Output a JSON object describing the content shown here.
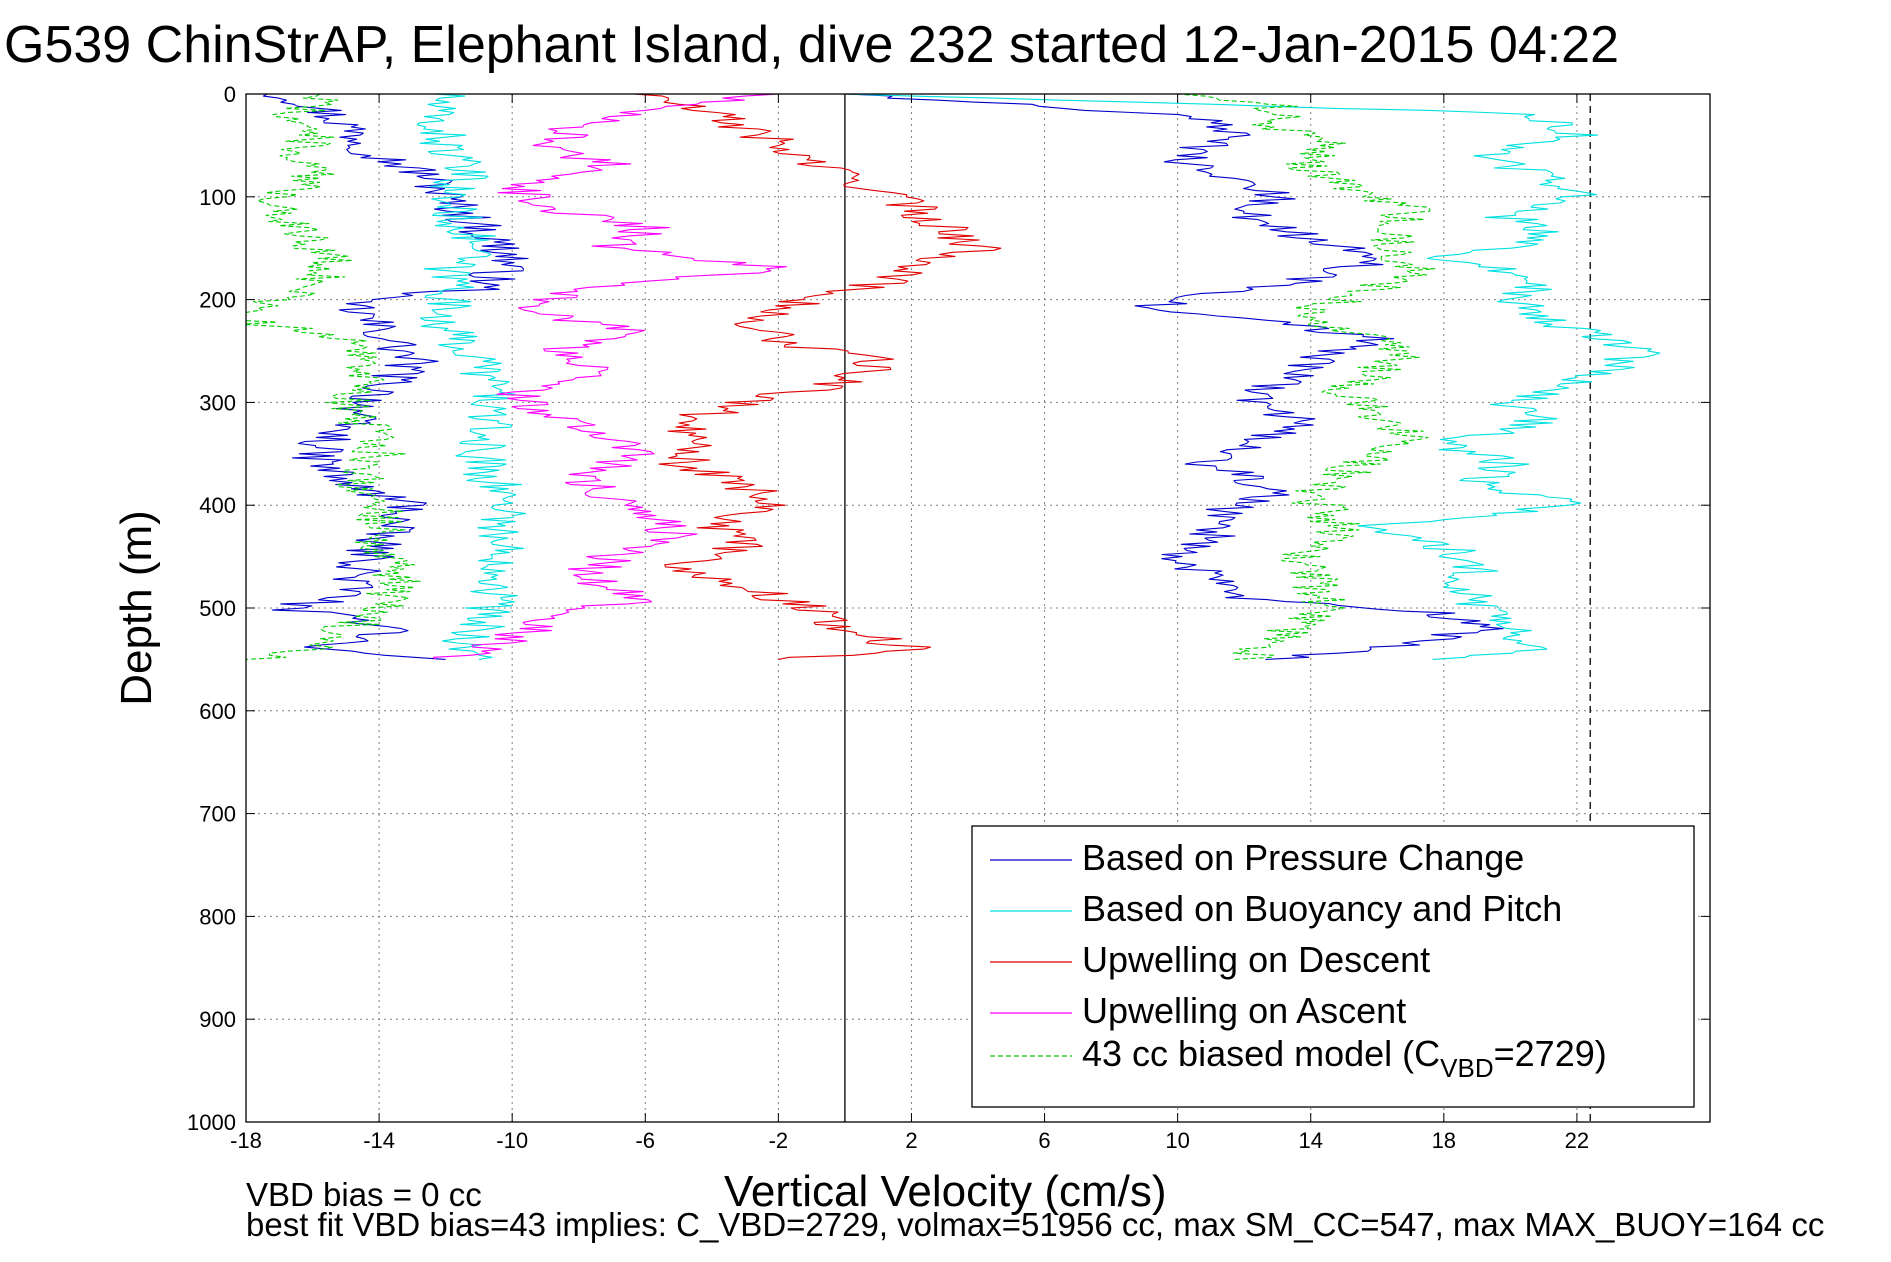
{
  "chart_data": {
    "type": "line",
    "title": "G539 ChinStrAP, Elephant Island, dive 232 started 12-Jan-2015 04:22",
    "xlabel": "Vertical Velocity (cm/s)",
    "ylabel": "Depth (m)",
    "xlim": [
      -18,
      26
    ],
    "ylim": [
      1000,
      0
    ],
    "x_ticks": [
      -18,
      -14,
      -10,
      -6,
      -2,
      2,
      6,
      10,
      14,
      18,
      22
    ],
    "x_tick_labels": [
      "-18",
      "-14",
      "-10",
      "-6",
      "-2",
      "2",
      "6",
      "10",
      "14",
      "18",
      "22"
    ],
    "y_ticks": [
      0,
      100,
      200,
      300,
      400,
      500,
      600,
      700,
      800,
      900,
      1000
    ],
    "y_tick_labels": [
      "0",
      "100",
      "200",
      "300",
      "400",
      "500",
      "600",
      "700",
      "800",
      "900",
      "1000"
    ],
    "grid": true,
    "legend_position": "bottom-right",
    "vertical_lines": [
      {
        "x": 0,
        "style": "solid",
        "color": "#000000"
      },
      {
        "x": 22.4,
        "style": "dashed",
        "color": "#000000"
      }
    ],
    "series": [
      {
        "name": "Based on Pressure Change",
        "color": "#0000cc",
        "style": "solid",
        "descent": {
          "depth": [
            0,
            10,
            30,
            60,
            80,
            100,
            130,
            160,
            190,
            200,
            230,
            260,
            290,
            320,
            350,
            380,
            400,
            430,
            460,
            490,
            500,
            520,
            540,
            550
          ],
          "x": [
            -17,
            -16,
            -15,
            -14,
            -12.5,
            -12,
            -11,
            -10,
            -11,
            -15,
            -14,
            -13,
            -14,
            -15,
            -16,
            -15,
            -13,
            -14,
            -14.5,
            -15,
            -17,
            -13,
            -16,
            -12
          ]
        },
        "ascent": {
          "depth": [
            550,
            540,
            520,
            505,
            490,
            470,
            450,
            430,
            410,
            390,
            360,
            340,
            320,
            300,
            280,
            260,
            240,
            220,
            210,
            200,
            180,
            160,
            140,
            120,
            100,
            80,
            60,
            40,
            20,
            0
          ],
          "x": [
            13,
            16,
            19,
            18,
            12,
            11,
            10,
            11,
            11,
            13,
            11,
            12,
            14,
            12,
            13,
            14,
            16,
            13,
            9,
            10,
            14,
            16,
            14,
            12,
            13,
            11,
            10,
            12,
            10,
            0
          ]
        }
      },
      {
        "name": "Based on Buoyancy and Pitch",
        "color": "#00e0e0",
        "style": "solid",
        "descent": {
          "depth": [
            0,
            20,
            50,
            80,
            100,
            130,
            150,
            170,
            190,
            200,
            230,
            260,
            290,
            320,
            350,
            380,
            400,
            430,
            460,
            490,
            520,
            540,
            550
          ],
          "x": [
            -12,
            -12.5,
            -12,
            -11.5,
            -12,
            -11.5,
            -11,
            -12,
            -11.5,
            -12,
            -12,
            -11,
            -10.5,
            -10.8,
            -11,
            -10.5,
            -10,
            -10.5,
            -10.2,
            -10.5,
            -11,
            -11.5,
            -11
          ]
        },
        "ascent": {
          "depth": [
            550,
            540,
            520,
            500,
            480,
            460,
            440,
            420,
            400,
            380,
            360,
            340,
            320,
            300,
            280,
            250,
            230,
            200,
            180,
            160,
            140,
            120,
            100,
            80,
            60,
            40,
            20,
            0
          ],
          "x": [
            18,
            21,
            20,
            19,
            18.5,
            19,
            18,
            16,
            22,
            19,
            20,
            18,
            21,
            20,
            22,
            24,
            22,
            20,
            21,
            18,
            21,
            20,
            22,
            21,
            19,
            22,
            21,
            0
          ]
        }
      },
      {
        "name": "Upwelling on Descent",
        "color": "#e00000",
        "style": "solid",
        "descent": {
          "depth": [
            0,
            20,
            40,
            60,
            80,
            100,
            120,
            140,
            150,
            160,
            180,
            200,
            220,
            240,
            260,
            280,
            300,
            320,
            340,
            360,
            380,
            400,
            420,
            440,
            460,
            480,
            500,
            520,
            540,
            550
          ],
          "x": [
            -6,
            -4,
            -2.5,
            -1.5,
            0,
            1.5,
            2.5,
            3.5,
            4,
            3,
            1.5,
            -1,
            -3,
            -2,
            1,
            0,
            -3,
            -5,
            -4,
            -5,
            -3,
            -2,
            -4,
            -3,
            -5,
            -3,
            -1,
            0,
            2,
            -2
          ]
        }
      },
      {
        "name": "Upwelling on Ascent",
        "color": "#ff00ff",
        "style": "solid",
        "ascent": {
          "depth": [
            550,
            530,
            510,
            490,
            470,
            450,
            430,
            410,
            390,
            370,
            350,
            330,
            310,
            290,
            270,
            250,
            230,
            210,
            190,
            170,
            150,
            130,
            110,
            90,
            70,
            50,
            30,
            10,
            0
          ],
          "x": [
            -12,
            -10,
            -9,
            -6,
            -8,
            -7,
            -5,
            -6,
            -7,
            -8,
            -6,
            -7,
            -9,
            -10,
            -7,
            -9,
            -6,
            -10,
            -8,
            -2,
            -7,
            -6,
            -9,
            -10,
            -7,
            -9,
            -8,
            -5,
            -2
          ]
        }
      },
      {
        "name": "43 cc biased model (C_VBD=2729)",
        "legend_parts": [
          "43 cc biased model (C",
          "VBD",
          "=2729)"
        ],
        "color": "#00cc00",
        "style": "dashed",
        "descent": {
          "depth": [
            0,
            20,
            40,
            60,
            80,
            100,
            130,
            160,
            190,
            200,
            220,
            240,
            260,
            290,
            320,
            350,
            380,
            410,
            440,
            470,
            500,
            520,
            540,
            550
          ],
          "x": [
            -15.5,
            -16.5,
            -16,
            -16.5,
            -16,
            -17,
            -16.5,
            -15.5,
            -16,
            -17,
            -18,
            -15,
            -14,
            -15,
            -14.5,
            -14,
            -14.5,
            -14,
            -14,
            -13.5,
            -14,
            -15,
            -16,
            -18
          ]
        },
        "ascent": {
          "depth": [
            550,
            530,
            510,
            490,
            470,
            450,
            430,
            410,
            390,
            370,
            350,
            330,
            310,
            290,
            270,
            250,
            230,
            210,
            190,
            170,
            150,
            130,
            110,
            90,
            70,
            50,
            30,
            10,
            0
          ],
          "x": [
            12,
            13,
            14,
            14.5,
            14,
            13.5,
            15,
            14.5,
            14,
            15,
            16,
            17,
            16,
            15,
            16,
            17,
            15,
            14,
            16,
            17,
            16.5,
            16.5,
            17,
            15,
            14,
            14.5,
            13,
            13,
            10
          ]
        }
      }
    ]
  },
  "footer": {
    "line1": "VBD bias = 0 cc",
    "line2": "best fit VBD bias=43 implies: C_VBD=2729, volmax=51956 cc, max SM_CC=547, max MAX_BUOY=164 cc"
  }
}
